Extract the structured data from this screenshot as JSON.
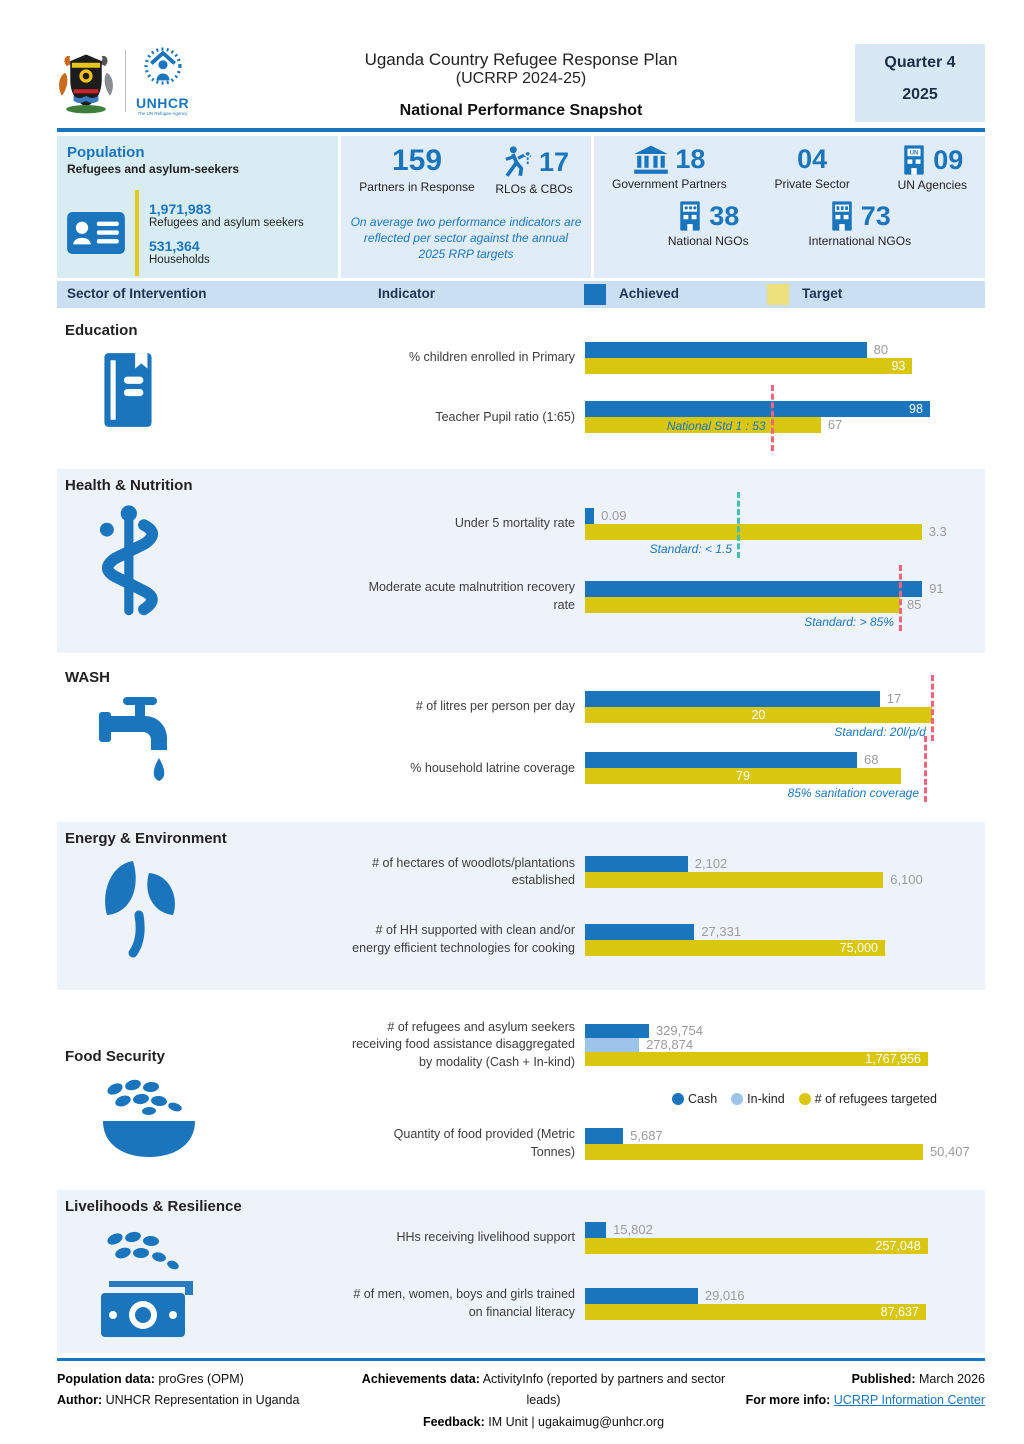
{
  "header": {
    "title_line1": "Uganda Country Refugee Response Plan",
    "title_line2": "(UCRRP 2024-25)",
    "subtitle": "National Performance Snapshot",
    "quarter_label": "Quarter 4",
    "year": "2025",
    "unhcr_label": "UNHCR",
    "unhcr_tagline": "The UN Refugee Agency"
  },
  "population": {
    "title": "Population",
    "subtitle": "Refugees and asylum-seekers",
    "refugees_value": "1,971,983",
    "refugees_label": "Refugees and asylum seekers",
    "households_value": "531,364",
    "households_label": "Households"
  },
  "partners": {
    "partners_value": "159",
    "partners_label": "Partners in Response",
    "rlos_value": "17",
    "rlos_label": "RLOs & CBOs",
    "note": "On average two performance indicators are reflected per sector against the annual 2025 RRP targets",
    "gov_value": "18",
    "gov_label": "Government Partners",
    "private_value": "04",
    "private_label": "Private Sector",
    "un_value": "09",
    "un_label": "UN Agencies",
    "national_value": "38",
    "national_label": "National NGOs",
    "international_value": "73",
    "international_label": "International NGOs"
  },
  "table_header": {
    "sector": "Sector of Intervention",
    "indicator": "Indicator",
    "achieved": "Achieved",
    "target": "Target"
  },
  "colors": {
    "achieved": "#1b75bc",
    "target": "#d9c60f",
    "inkind": "#9cc3e8",
    "target_swatch": "#ece17c",
    "standard_red": "#f1647e",
    "standard_teal": "#42bfae",
    "value_gray": "#9b9b9b"
  },
  "legend_food": [
    {
      "label": "Cash",
      "color": "#1b75bc"
    },
    {
      "label": "In-kind",
      "color": "#9cc3e8"
    },
    {
      "label": "# of refugees targeted",
      "color": "#d9c60f"
    }
  ],
  "chart_data": {
    "type": "bar",
    "orientation": "horizontal",
    "series_legend": [
      "Achieved",
      "Target"
    ],
    "sections": [
      {
        "name": "Education",
        "icon": "book-icon",
        "tinted": false,
        "indicators": [
          {
            "label": "% children enrolled in Primary",
            "max": 100,
            "bars": [
              {
                "series": "achieved",
                "value": 80,
                "display": "80",
                "label_pos": "outside"
              },
              {
                "series": "target",
                "value": 93,
                "display": "93",
                "label_pos": "inside-right"
              }
            ]
          },
          {
            "label": "Teacher Pupil ratio (1:65)",
            "max": 100,
            "bars": [
              {
                "series": "achieved",
                "value": 98,
                "display": "98",
                "label_pos": "inside-right"
              },
              {
                "series": "target",
                "value": 67,
                "display": "67",
                "label_pos": "outside"
              }
            ],
            "standard": {
              "value": 53,
              "label": "National Std 1 : 53",
              "line": "red",
              "overlap": true
            }
          }
        ]
      },
      {
        "name": "Health & Nutrition",
        "icon": "medical-icon",
        "tinted": true,
        "indicators": [
          {
            "label": "Under 5 mortality rate",
            "max": 3.45,
            "bars": [
              {
                "series": "achieved",
                "value": 0.09,
                "display": "0.09",
                "label_pos": "outside"
              },
              {
                "series": "target",
                "value": 3.3,
                "display": "3.3",
                "label_pos": "outside"
              }
            ],
            "standard": {
              "value": 1.5,
              "label": "Standard: < 1.5",
              "line": "teal"
            }
          },
          {
            "label": "Moderate acute malnutrition recovery rate",
            "max": 95,
            "bars": [
              {
                "series": "achieved",
                "value": 91,
                "display": "91",
                "label_pos": "outside"
              },
              {
                "series": "target",
                "value": 85,
                "display": "85",
                "label_pos": "outside"
              }
            ],
            "standard": {
              "value": 85,
              "label": "Standard: > 85%",
              "line": "red"
            }
          }
        ]
      },
      {
        "name": "WASH",
        "icon": "tap-icon",
        "tinted": false,
        "indicators": [
          {
            "label": "# of litres per person per day",
            "max": 20.3,
            "bars": [
              {
                "series": "achieved",
                "value": 17,
                "display": "17",
                "label_pos": "outside"
              },
              {
                "series": "target",
                "value": 20,
                "display": "20",
                "label_pos": "inside-center"
              }
            ],
            "standard": {
              "value": 20,
              "label": "Standard: 20l/p/d",
              "line": "red"
            }
          },
          {
            "label": "% household latrine coverage",
            "max": 88,
            "bars": [
              {
                "series": "achieved",
                "value": 68,
                "display": "68",
                "label_pos": "outside"
              },
              {
                "series": "target",
                "value": 79,
                "display": "79",
                "label_pos": "inside-center"
              }
            ],
            "standard": {
              "value": 85,
              "label": "85% sanitation coverage",
              "line": "red"
            }
          }
        ]
      },
      {
        "name": "Energy & Environment",
        "icon": "plant-icon",
        "tinted": true,
        "indicators": [
          {
            "label": "# of hectares of woodlots/plantations established",
            "max": 7200,
            "bars": [
              {
                "series": "achieved",
                "value": 2102,
                "display": "2,102",
                "label_pos": "outside"
              },
              {
                "series": "target",
                "value": 6100,
                "display": "6,100",
                "label_pos": "outside"
              }
            ]
          },
          {
            "label": "# of HH supported with clean and/or energy efficient technologies for cooking",
            "max": 88000,
            "bars": [
              {
                "series": "achieved",
                "value": 27331,
                "display": "27,331",
                "label_pos": "outside"
              },
              {
                "series": "target",
                "value": 75000,
                "display": "75,000",
                "label_pos": "inside-right"
              }
            ]
          }
        ]
      },
      {
        "name": "Food Security",
        "icon": "food-bowl-icon",
        "tinted": false,
        "legend_after_row": 0,
        "indicators": [
          {
            "label": "# of refugees and asylum seekers receiving food assistance disaggregated by modality (Cash + In-kind)",
            "max": 1815000,
            "bars": [
              {
                "series": "achieved",
                "value": 329754,
                "display": "329,754",
                "label_pos": "outside"
              },
              {
                "series": "inkind",
                "value": 278874,
                "display": "278,874",
                "label_pos": "outside"
              },
              {
                "series": "target",
                "value": 1767956,
                "display": "1,767,956",
                "label_pos": "inside-right"
              }
            ]
          },
          {
            "label": "Quantity of food provided (Metric Tonnes)",
            "max": 52500,
            "bars": [
              {
                "series": "achieved",
                "value": 5687,
                "display": "5,687",
                "label_pos": "outside"
              },
              {
                "series": "target",
                "value": 50407,
                "display": "50,407",
                "label_pos": "outside"
              }
            ]
          }
        ]
      },
      {
        "name": "Livelihoods & Resilience",
        "icon": "money-grain-icon",
        "tinted": true,
        "indicators": [
          {
            "label": "HHs receiving livelihood support",
            "max": 264000,
            "bars": [
              {
                "series": "achieved",
                "value": 15802,
                "display": "15,802",
                "label_pos": "outside"
              },
              {
                "series": "target",
                "value": 257048,
                "display": "257,048",
                "label_pos": "inside-right"
              }
            ]
          },
          {
            "label": "# of men, women, boys and girls trained on financial literacy",
            "max": 90500,
            "bars": [
              {
                "series": "achieved",
                "value": 29016,
                "display": "29,016",
                "label_pos": "outside"
              },
              {
                "series": "target",
                "value": 87637,
                "display": "87,637",
                "label_pos": "inside-right"
              }
            ]
          }
        ]
      }
    ]
  },
  "footer": {
    "population_data_label": "Population data:",
    "population_data": "proGres (OPM)",
    "author_label": "Author:",
    "author": "UNHCR Representation in Uganda",
    "achievements_label": "Achievements data:",
    "achievements": "ActivityInfo (reported by partners and sector leads)",
    "feedback_label": "Feedback:",
    "feedback": "IM Unit | ugakaimug@unhcr.org",
    "published_label": "Published:",
    "published": "March 2026",
    "more_info_label": "For more info:",
    "more_info_link": "UCRRP Information Center"
  }
}
